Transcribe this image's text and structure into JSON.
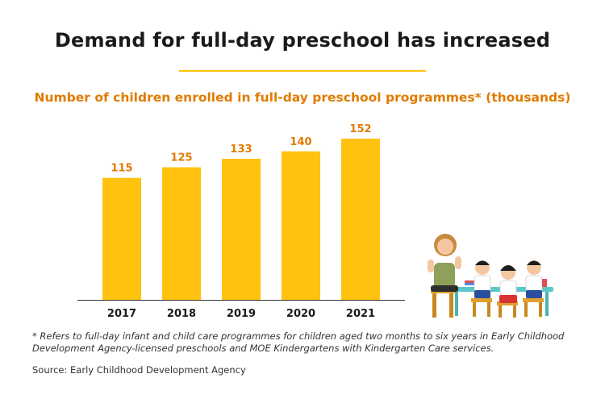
{
  "title": "Demand for full-day preschool has increased",
  "colors": {
    "bar": "#FFC20E",
    "accent_text": "#E07B00",
    "rule": "#FFC20E",
    "axis": "#333333"
  },
  "chart_data": {
    "type": "bar",
    "title": "Number of children enrolled in full-day preschool programmes* (thousands)",
    "categories": [
      "2017",
      "2018",
      "2019",
      "2020",
      "2021"
    ],
    "values": [
      115,
      125,
      133,
      140,
      152
    ],
    "ylim": [
      0,
      152
    ],
    "xlabel": "",
    "ylabel": "",
    "grid": false,
    "legend": "none"
  },
  "footnote": "* Refers to full-day infant and child care programmes for children aged two months to six years in Early Childhood Development Agency-licensed preschools and MOE Kindergartens with Kindergarten Care services.",
  "source": "Source: Early Childhood Development Agency"
}
